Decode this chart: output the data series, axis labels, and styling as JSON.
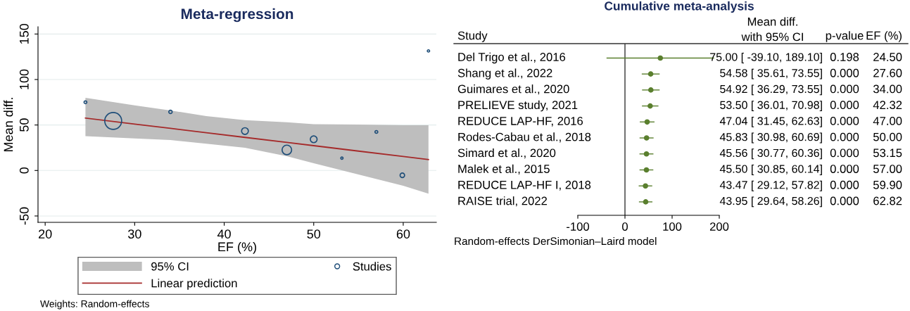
{
  "chart_data": [
    {
      "type": "bubble",
      "title": "Meta-regression",
      "xlabel": "EF (%)",
      "ylabel": "Mean diff.",
      "xlim": [
        19.2,
        63.7
      ],
      "ylim": [
        -57,
        158
      ],
      "xticks": [
        20,
        30,
        40,
        50,
        60
      ],
      "yticks": [
        -50,
        0,
        50,
        100,
        150
      ],
      "grid": "y",
      "legend": "bottom",
      "annotations": [
        "95% CI",
        "Weights: Random-effects"
      ],
      "series": [
        {
          "name": "Linear prediction",
          "type": "line",
          "color": "#a52a2a",
          "x": [
            24.5,
            30,
            34,
            38,
            42.32,
            47,
            50,
            55,
            60,
            62.82
          ],
          "values": [
            57.6,
            51.0,
            46.3,
            41.5,
            36.4,
            30.8,
            27.3,
            21.3,
            15.4,
            12.0
          ],
          "lower": [
            37.7,
            35.3,
            33.4,
            29.4,
            25,
            15.7,
            8,
            -4.4,
            -16.8,
            -25.5
          ],
          "upper": [
            79.9,
            71.5,
            66,
            59.8,
            55.4,
            53,
            50.8,
            50.5,
            49.8,
            49.8
          ]
        },
        {
          "name": "Studies",
          "type": "bubble",
          "color": "#1f4e79",
          "marker": "circle",
          "x": [
            24.5,
            27.6,
            34.0,
            42.32,
            47.0,
            50.0,
            53.15,
            57.0,
            59.9,
            62.82
          ],
          "values": [
            75,
            54.5,
            64.4,
            43.3,
            22.6,
            34.3,
            13.6,
            42.4,
            -5.3,
            131.4
          ],
          "sizes": [
            0.028,
            1,
            0.04,
            0.16,
            0.32,
            0.16,
            0.018,
            0.028,
            0.071,
            0.018
          ]
        }
      ]
    },
    {
      "type": "scatter",
      "orientation": "horizontal",
      "title": "Cumulative meta-analysis",
      "color": "#5a7f2e",
      "marker": "circle",
      "xlim": [
        -100,
        200
      ],
      "xticks": [
        -100,
        0,
        100,
        200
      ],
      "grid": false,
      "categories": [
        "Del Trigo et al., 2016",
        "Shang et al., 2022",
        "Guimares et al., 2020",
        "PRELIEVE study, 2021",
        "REDUCE LAP-HF, 2016",
        "Rodes-Cabau et al., 2018",
        "Simard et al., 2020",
        "Malek et al., 2015",
        "REDUCE LAP-HF I, 2018",
        "RAISE trial, 2022"
      ],
      "values": [
        75.0,
        54.58,
        54.92,
        53.5,
        47.04,
        45.83,
        45.56,
        45.5,
        43.47,
        43.95
      ],
      "errors": [
        [
          -39.1,
          189.1
        ],
        [
          35.61,
          73.55
        ],
        [
          36.29,
          73.55
        ],
        [
          36.01,
          70.98
        ],
        [
          31.45,
          62.63
        ],
        [
          30.98,
          60.69
        ],
        [
          30.77,
          60.36
        ],
        [
          30.85,
          60.14
        ],
        [
          29.12,
          57.82
        ],
        [
          29.64,
          58.26
        ]
      ],
      "value_labels": [
        "75.00 [ -39.10, 189.10]",
        "54.58 [ 35.61, 73.55]",
        "54.92 [ 36.29, 73.55]",
        "53.50 [ 36.01, 70.98]",
        "47.04 [ 31.45, 62.63]",
        "45.83 [ 30.98, 60.69]",
        "45.56 [ 30.77, 60.36]",
        "45.50 [ 30.85, 60.14]",
        "43.47 [ 29.12, 57.82]",
        "43.95 [ 29.64, 58.26]"
      ],
      "ref_lines": [
        {
          "axis": "x",
          "value": 0,
          "color": "#000000"
        }
      ],
      "annotations": [
        "Study",
        "Mean diff.\nwith 95% CI",
        "p-value",
        "EF (%)",
        "Random-effects DerSimonian–Laird model",
        "0.198",
        "0.000",
        "0.000",
        "0.000",
        "0.000",
        "0.000",
        "0.000",
        "0.000",
        "0.000",
        "0.000",
        "24.50",
        "27.60",
        "34.00",
        "42.32",
        "47.00",
        "50.00",
        "53.15",
        "57.00",
        "59.90",
        "62.82"
      ]
    }
  ]
}
